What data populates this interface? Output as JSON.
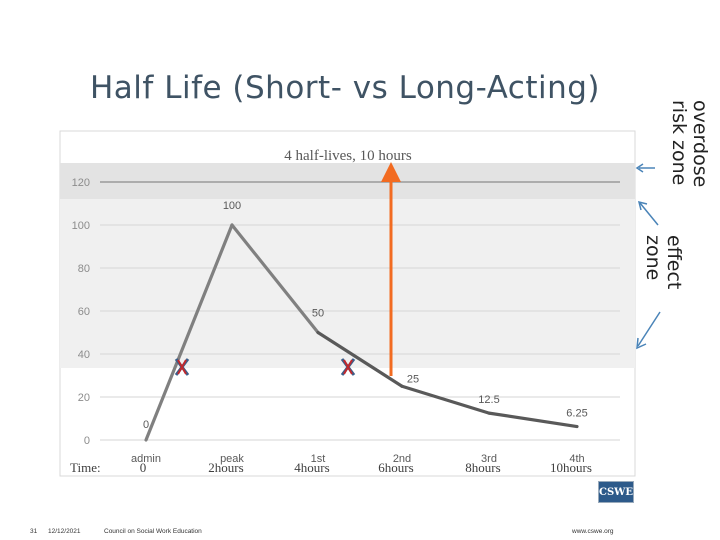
{
  "slide": {
    "title": "Half Life (Short- vs Long-Acting)",
    "zone_labels": {
      "overdose": [
        "overdose",
        "risk zone"
      ],
      "effect": [
        "effect",
        "zone"
      ]
    },
    "footer": {
      "page_number": "31",
      "date": "12/12/2021",
      "org": "Council on Social Work Education",
      "url": "www.cswe.org"
    },
    "logo_text": "CSWE"
  },
  "chart_data": {
    "type": "line",
    "title": "4 half-lives, 10 hours",
    "ylim": [
      0,
      120
    ],
    "y_ticks": [
      0,
      20,
      40,
      60,
      80,
      100,
      120
    ],
    "x_stage_labels": [
      "admin",
      "peak",
      "1st",
      "2nd",
      "3rd",
      "4th"
    ],
    "x_time_prefix": "Time:",
    "x_time_labels": [
      "0",
      "2hours",
      "4hours",
      "6hours",
      "8hours",
      "10hours"
    ],
    "series": [
      {
        "values": [
          0,
          100,
          50,
          25,
          12.5,
          6.25
        ],
        "point_labels": [
          "0",
          "100",
          "50",
          "25",
          "12.5",
          "6.25"
        ],
        "color": "#808080"
      }
    ],
    "overdose_zone_min": 120,
    "effect_zone": [
      40,
      120
    ],
    "x_marks_at_y": 40,
    "arrow_from_y": 25,
    "colors": {
      "arrow": "#f26b21",
      "x_mark_red": "#c0282d",
      "x_mark_blue": "#3b5f8a",
      "zone_arrows": "#4a84b8"
    }
  }
}
